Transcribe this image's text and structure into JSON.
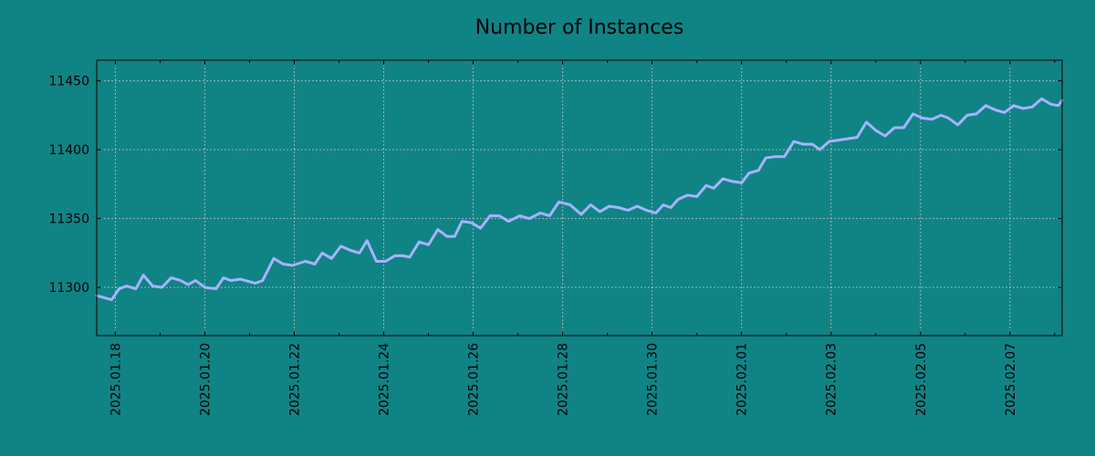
{
  "chart_data": {
    "type": "line",
    "title": "Number of Instances",
    "xlabel": "",
    "ylabel": "",
    "x_type": "datetime",
    "xlim": [
      "2025-01-17T14:00",
      "2025-02-08T04:00"
    ],
    "ylim": [
      11265,
      11465
    ],
    "y_ticks": [
      11300,
      11350,
      11400,
      11450
    ],
    "x_ticks": [
      "2025.01.18",
      "2025.01.20",
      "2025.01.22",
      "2025.01.24",
      "2025.01.26",
      "2025.01.28",
      "2025.01.30",
      "2025.02.01",
      "2025.02.03",
      "2025.02.05",
      "2025.02.07"
    ],
    "x_tick_values": [
      "2025-01-18",
      "2025-01-20",
      "2025-01-22",
      "2025-01-24",
      "2025-01-26",
      "2025-01-28",
      "2025-01-30",
      "2025-02-01",
      "2025-02-03",
      "2025-02-05",
      "2025-02-07"
    ],
    "grid": true,
    "colors": {
      "background": "#108385",
      "line": "#a6b3ff"
    },
    "series": [
      {
        "color": "#a6b3ff",
        "x": [
          "2025-01-17T14:00",
          "2025-01-17T22:00",
          "2025-01-18T02:00",
          "2025-01-18T06:00",
          "2025-01-18T11:00",
          "2025-01-18T15:00",
          "2025-01-18T20:00",
          "2025-01-19T01:00",
          "2025-01-19T06:00",
          "2025-01-19T11:00",
          "2025-01-19T15:00",
          "2025-01-19T19:00",
          "2025-01-20T00:00",
          "2025-01-20T06:00",
          "2025-01-20T10:00",
          "2025-01-20T14:00",
          "2025-01-20T19:00",
          "2025-01-21T03:00",
          "2025-01-21T07:00",
          "2025-01-21T13:00",
          "2025-01-21T18:00",
          "2025-01-21T23:00",
          "2025-01-22T06:00",
          "2025-01-22T11:00",
          "2025-01-22T15:00",
          "2025-01-22T20:00",
          "2025-01-23T01:00",
          "2025-01-23T06:00",
          "2025-01-23T11:00",
          "2025-01-23T15:00",
          "2025-01-23T20:00",
          "2025-01-24T01:00",
          "2025-01-24T06:00",
          "2025-01-24T10:00",
          "2025-01-24T14:00",
          "2025-01-24T19:00",
          "2025-01-25T00:00",
          "2025-01-25T05:00",
          "2025-01-25T10:00",
          "2025-01-25T14:00",
          "2025-01-25T18:00",
          "2025-01-25T23:00",
          "2025-01-26T04:00",
          "2025-01-26T09:00",
          "2025-01-26T14:00",
          "2025-01-26T19:00",
          "2025-01-27T01:00",
          "2025-01-27T06:00",
          "2025-01-27T12:00",
          "2025-01-27T17:00",
          "2025-01-27T22:00",
          "2025-01-28T04:00",
          "2025-01-28T10:00",
          "2025-01-28T15:00",
          "2025-01-28T20:00",
          "2025-01-29T01:00",
          "2025-01-29T06:00",
          "2025-01-29T11:00",
          "2025-01-29T16:00",
          "2025-01-29T21:00",
          "2025-01-30T02:00",
          "2025-01-30T06:00",
          "2025-01-30T10:00",
          "2025-01-30T14:00",
          "2025-01-30T19:00",
          "2025-01-31T00:00",
          "2025-01-31T05:00",
          "2025-01-31T09:00",
          "2025-01-31T14:00",
          "2025-01-31T19:00",
          "2025-02-01T00:00",
          "2025-02-01T04:00",
          "2025-02-01T09:00",
          "2025-02-01T13:00",
          "2025-02-01T18:00",
          "2025-02-01T23:00",
          "2025-02-02T04:00",
          "2025-02-02T09:00",
          "2025-02-02T14:00",
          "2025-02-02T18:00",
          "2025-02-02T23:00",
          "2025-02-03T04:00",
          "2025-02-03T09:00",
          "2025-02-03T14:00",
          "2025-02-03T19:00",
          "2025-02-04T00:00",
          "2025-02-04T05:00",
          "2025-02-04T10:00",
          "2025-02-04T15:00",
          "2025-02-04T20:00",
          "2025-02-05T01:00",
          "2025-02-05T06:00",
          "2025-02-05T11:00",
          "2025-02-05T15:00",
          "2025-02-05T20:00",
          "2025-02-06T01:00",
          "2025-02-06T06:00",
          "2025-02-06T11:00",
          "2025-02-06T16:00",
          "2025-02-06T21:00",
          "2025-02-07T02:00",
          "2025-02-07T07:00",
          "2025-02-07T12:00",
          "2025-02-07T17:00",
          "2025-02-07T22:00",
          "2025-02-08T02:00",
          "2025-02-08T04:00"
        ],
        "y": [
          11294,
          11291,
          11299,
          11301,
          11299,
          11309,
          11301,
          11300,
          11307,
          11305,
          11302,
          11305,
          11300,
          11299,
          11307,
          11305,
          11306,
          11303,
          11305,
          11321,
          11317,
          11316,
          11319,
          11317,
          11325,
          11321,
          11330,
          11327,
          11325,
          11334,
          11319,
          11319,
          11323,
          11323,
          11322,
          11333,
          11331,
          11342,
          11337,
          11337,
          11348,
          11347,
          11343,
          11352,
          11352,
          11348,
          11352,
          11350,
          11354,
          11352,
          11362,
          11360,
          11353,
          11360,
          11355,
          11359,
          11358,
          11356,
          11359,
          11356,
          11354,
          11360,
          11358,
          11364,
          11367,
          11366,
          11374,
          11372,
          11379,
          11377,
          11376,
          11383,
          11385,
          11394,
          11395,
          11395,
          11406,
          11404,
          11404,
          11400,
          11406,
          11407,
          11408,
          11409,
          11420,
          11414,
          11410,
          11416,
          11416,
          11426,
          11423,
          11422,
          11425,
          11423,
          11418,
          11425,
          11426,
          11432,
          11429,
          11427,
          11432,
          11430,
          11431,
          11437,
          11433,
          11432,
          11436
        ]
      }
    ]
  }
}
